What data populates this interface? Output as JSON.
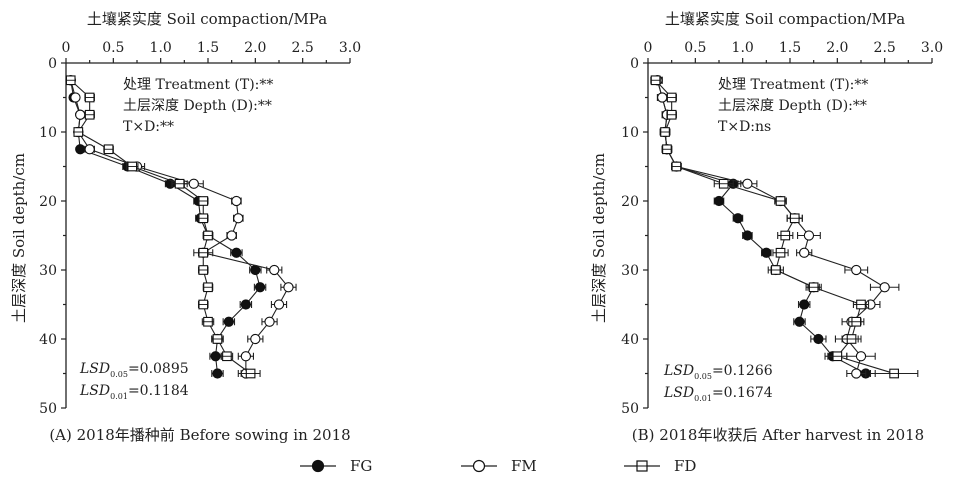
{
  "chart_data": [
    {
      "type": "line",
      "orientation": "vertical-profile",
      "top_axis_title": "土壤紧实度 Soil compaction/MPa",
      "y_axis_title": "土层深度 Soil depth/cm",
      "x_range": [
        0,
        3.0
      ],
      "y_range": [
        0,
        50
      ],
      "x_ticks": [
        "0",
        "0.5",
        "1.0",
        "1.5",
        "2.0",
        "2.5",
        "3.0"
      ],
      "y_ticks": [
        "0",
        "10",
        "20",
        "30",
        "40",
        "50"
      ],
      "annotations": [
        "处理 Treatment (T):**",
        "土层深度 Depth (D):**",
        "T×D:**"
      ],
      "lsd_lines": [
        {
          "name": "LSD",
          "sub": "0.05",
          "value": "=0.0895"
        },
        {
          "name": "LSD",
          "sub": "0.01",
          "value": "=0.1184"
        }
      ],
      "caption": "(A) 2018年播种前 Before sowing in 2018",
      "depths": [
        2.5,
        5,
        7.5,
        10,
        12.5,
        15,
        17.5,
        20,
        22.5,
        25,
        27.5,
        30,
        32.5,
        35,
        37.5,
        40,
        42.5,
        45
      ],
      "series": [
        {
          "name": "FG",
          "marker": "filled-circle",
          "values": [
            0.05,
            0.08,
            0.15,
            0.13,
            0.15,
            0.65,
            1.1,
            1.4,
            1.42,
            1.5,
            1.8,
            2.0,
            2.05,
            1.9,
            1.72,
            1.6,
            1.58,
            1.6
          ],
          "errors": [
            0.02,
            0.03,
            0.03,
            0.03,
            0.03,
            0.05,
            0.05,
            0.05,
            0.05,
            0.05,
            0.06,
            0.06,
            0.06,
            0.06,
            0.06,
            0.06,
            0.06,
            0.06
          ]
        },
        {
          "name": "FM",
          "marker": "open-circle",
          "values": [
            0.05,
            0.1,
            0.15,
            0.13,
            0.25,
            0.75,
            1.35,
            1.8,
            1.82,
            1.75,
            1.45,
            2.2,
            2.35,
            2.25,
            2.15,
            2.0,
            1.9,
            1.9
          ],
          "errors": [
            0.02,
            0.03,
            0.03,
            0.03,
            0.05,
            0.08,
            0.1,
            0.05,
            0.05,
            0.05,
            0.1,
            0.08,
            0.08,
            0.08,
            0.08,
            0.08,
            0.08,
            0.08
          ]
        },
        {
          "name": "FD",
          "marker": "open-square",
          "values": [
            0.05,
            0.25,
            0.25,
            0.13,
            0.45,
            0.7,
            1.2,
            1.45,
            1.45,
            1.5,
            1.45,
            1.45,
            1.5,
            1.45,
            1.5,
            1.6,
            1.7,
            1.95
          ],
          "errors": [
            0.02,
            0.05,
            0.05,
            0.03,
            0.05,
            0.06,
            0.08,
            0.05,
            0.05,
            0.05,
            0.05,
            0.05,
            0.05,
            0.05,
            0.06,
            0.06,
            0.06,
            0.1
          ]
        }
      ]
    },
    {
      "type": "line",
      "orientation": "vertical-profile",
      "top_axis_title": "土壤紧实度 Soil compaction/MPa",
      "y_axis_title": "土层深度 Soil depth/cm",
      "x_range": [
        0,
        3.0
      ],
      "y_range": [
        0,
        50
      ],
      "x_ticks": [
        "0",
        "0.5",
        "1.0",
        "1.5",
        "2.0",
        "2.5",
        "3.0"
      ],
      "y_ticks": [
        "0",
        "10",
        "20",
        "30",
        "40",
        "50"
      ],
      "annotations": [
        "处理 Treatment (T):**",
        "土层深度 Depth (D):**",
        "T×D:ns"
      ],
      "lsd_lines": [
        {
          "name": "LSD",
          "sub": "0.05",
          "value": "=0.1266"
        },
        {
          "name": "LSD",
          "sub": "0.01",
          "value": "=0.1674"
        }
      ],
      "caption": "(B) 2018年收获后 After harvest in 2018",
      "depths": [
        2.5,
        5,
        7.5,
        10,
        12.5,
        15,
        17.5,
        20,
        22.5,
        25,
        27.5,
        30,
        32.5,
        35,
        37.5,
        40,
        42.5,
        45
      ],
      "series": [
        {
          "name": "FG",
          "marker": "filled-circle",
          "values": [
            0.1,
            0.15,
            0.2,
            0.18,
            0.2,
            0.3,
            0.9,
            0.75,
            0.95,
            1.05,
            1.25,
            1.35,
            1.75,
            1.65,
            1.6,
            1.8,
            1.95,
            2.3
          ],
          "errors": [
            0.05,
            0.05,
            0.05,
            0.05,
            0.05,
            0.05,
            0.08,
            0.05,
            0.05,
            0.05,
            0.05,
            0.05,
            0.06,
            0.06,
            0.06,
            0.08,
            0.08,
            0.1
          ]
        },
        {
          "name": "FM",
          "marker": "open-circle",
          "values": [
            0.1,
            0.15,
            0.2,
            0.18,
            0.2,
            0.3,
            1.05,
            1.4,
            1.55,
            1.7,
            1.65,
            2.2,
            2.5,
            2.35,
            2.15,
            2.1,
            2.25,
            2.2
          ],
          "errors": [
            0.05,
            0.05,
            0.05,
            0.05,
            0.05,
            0.05,
            0.1,
            0.06,
            0.08,
            0.12,
            0.08,
            0.12,
            0.15,
            0.1,
            0.1,
            0.12,
            0.15,
            0.1
          ]
        },
        {
          "name": "FD",
          "marker": "open-square",
          "values": [
            0.08,
            0.25,
            0.25,
            0.18,
            0.2,
            0.3,
            0.8,
            1.4,
            1.55,
            1.45,
            1.4,
            1.35,
            1.75,
            2.25,
            2.2,
            2.15,
            2.0,
            2.6
          ],
          "errors": [
            0.05,
            0.05,
            0.05,
            0.05,
            0.05,
            0.05,
            0.1,
            0.06,
            0.08,
            0.08,
            0.08,
            0.08,
            0.08,
            0.08,
            0.08,
            0.1,
            0.1,
            0.25
          ]
        }
      ]
    }
  ],
  "legend": [
    {
      "name": "FG",
      "marker": "filled-circle"
    },
    {
      "name": "FM",
      "marker": "open-circle"
    },
    {
      "name": "FD",
      "marker": "open-square"
    }
  ]
}
